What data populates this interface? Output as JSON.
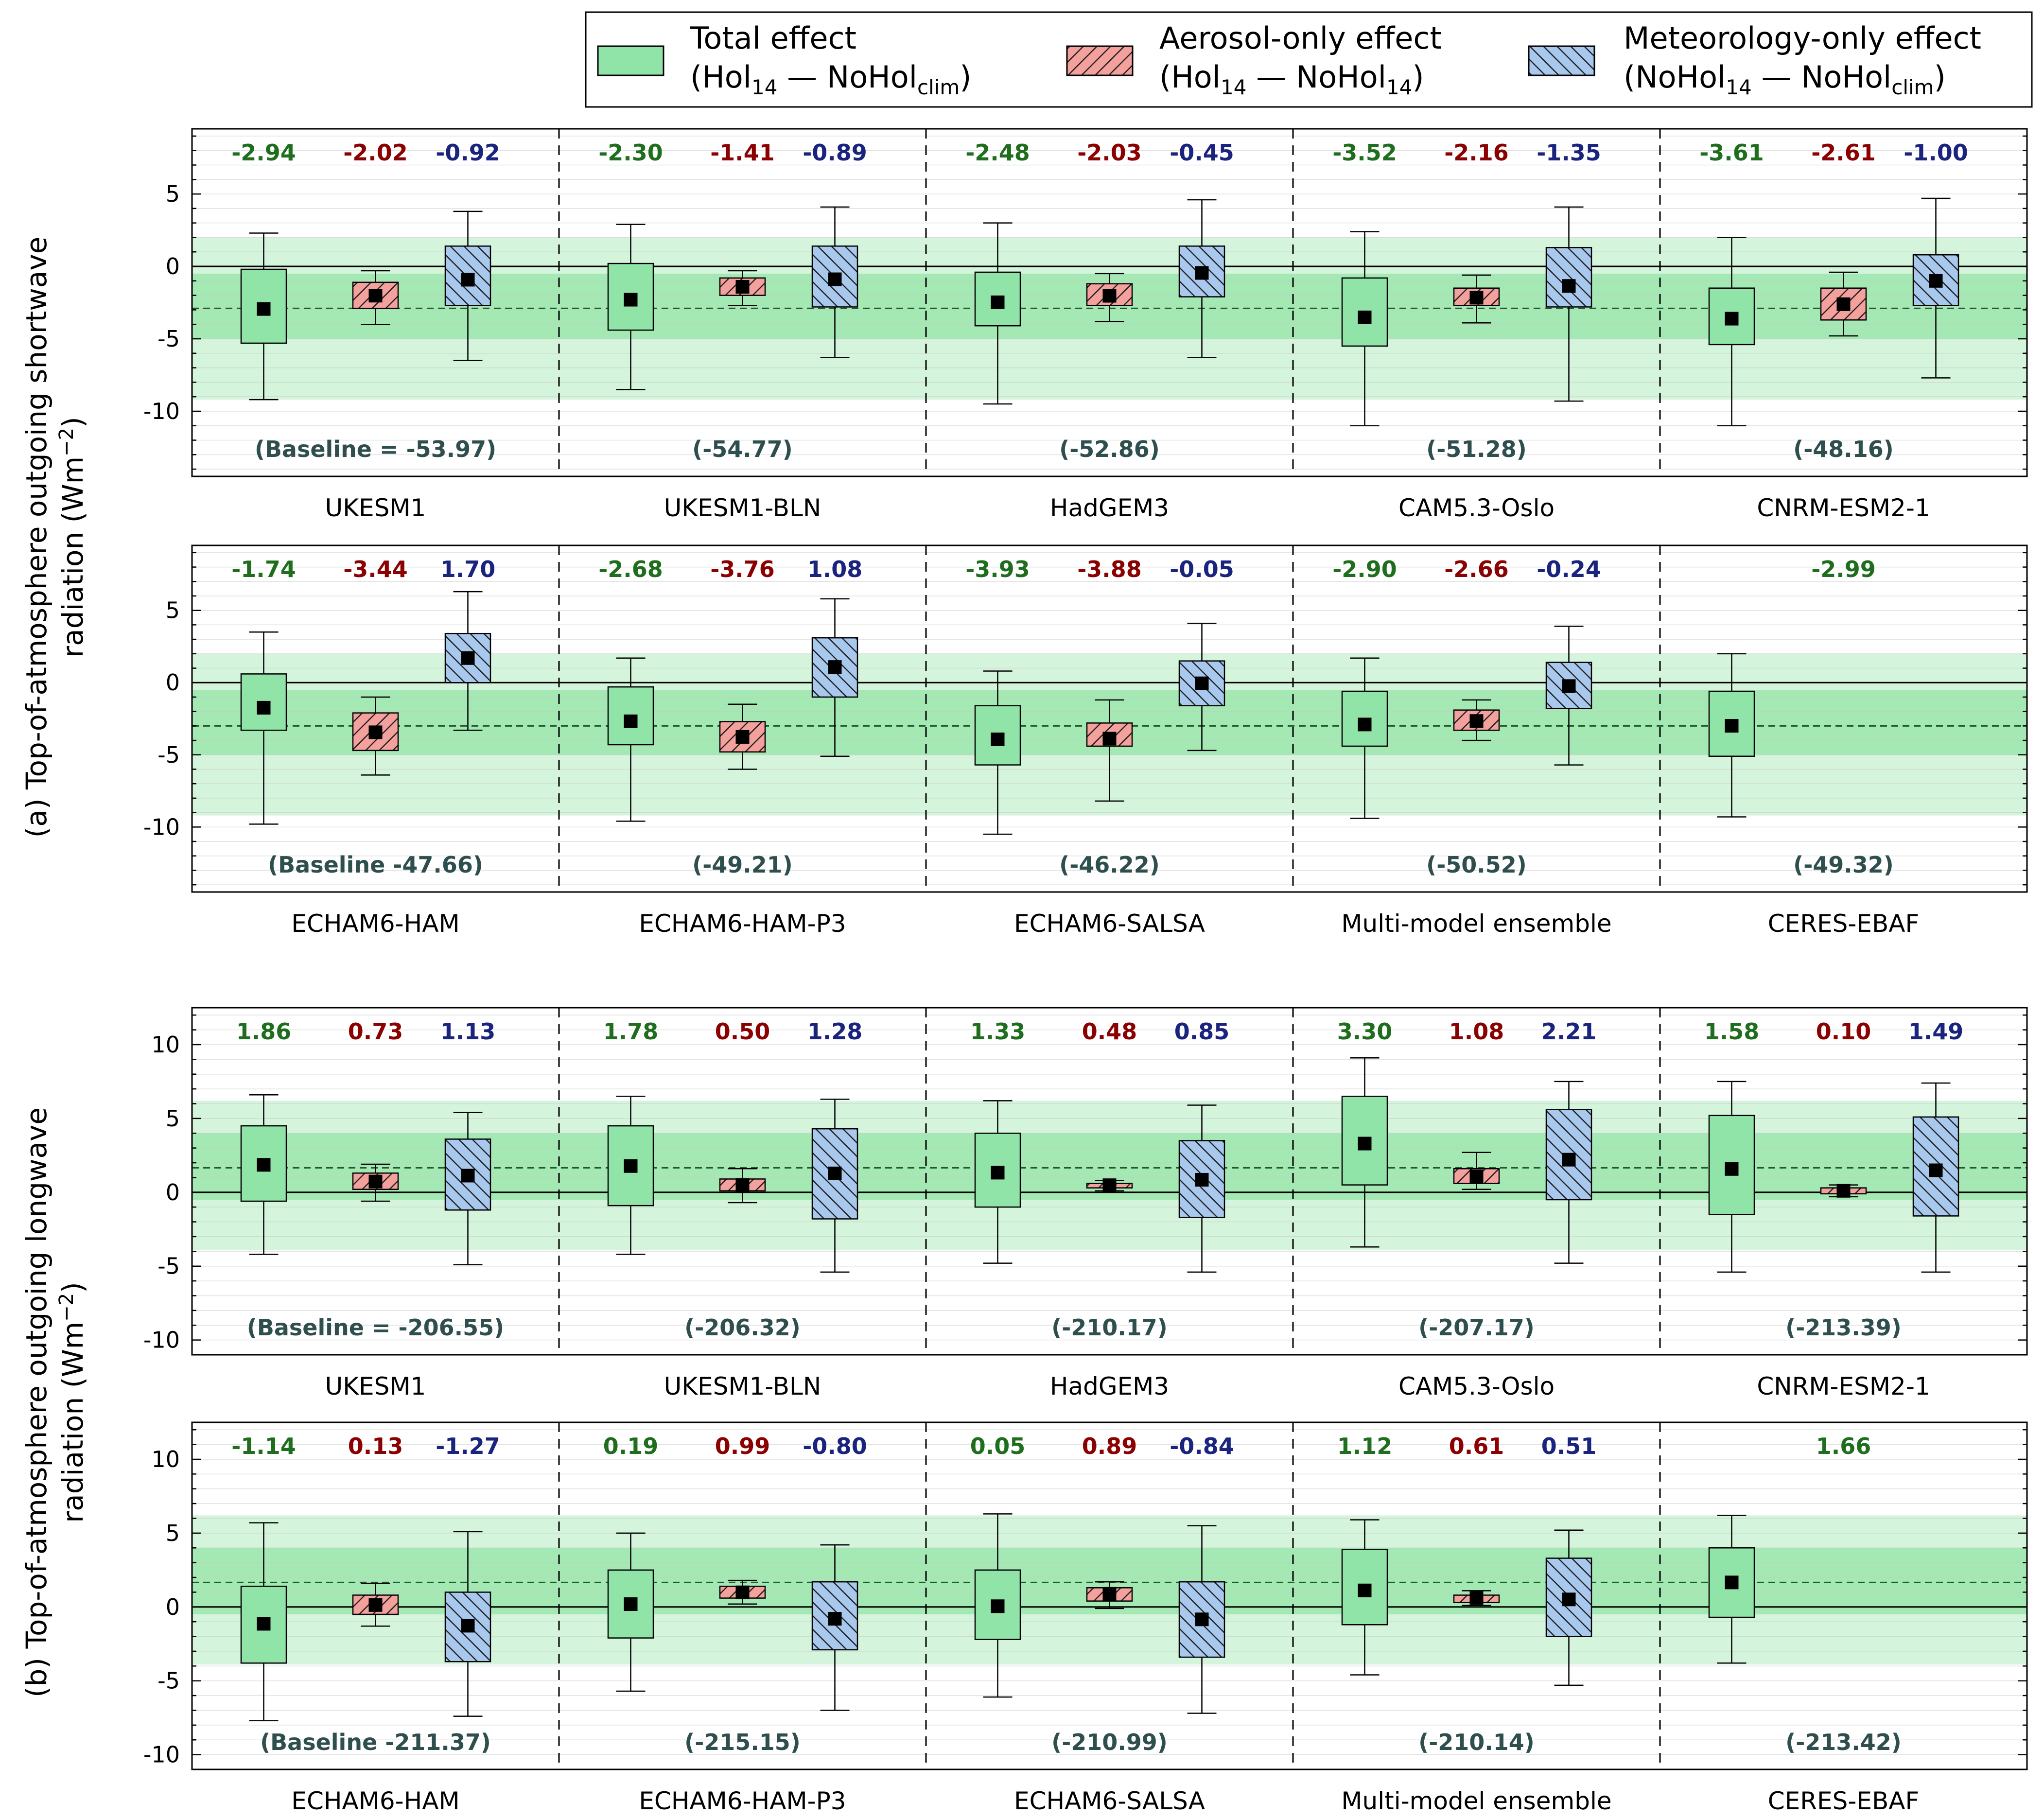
{
  "legend": {
    "total_title": "Total effect",
    "total_a": "(Hol",
    "total_a_sub": "14",
    "total_b": " — NoHol",
    "total_b_sub": "clim",
    "total_c": ")",
    "aer_title": "Aerosol-only effect",
    "aer_a": "(Hol",
    "aer_a_sub": "14",
    "aer_b": " — NoHol",
    "aer_b_sub": "14",
    "aer_c": ")",
    "met_title": "Meteorology-only effect",
    "met_a": "(NoHol",
    "met_a_sub": "14",
    "met_b": " — NoHol",
    "met_b_sub": "clim",
    "met_c": ")"
  },
  "ylabels": {
    "a_line1": "(a) Top-of-atmosphere outgoing shortwave",
    "a_line2": "radiation (Wm",
    "a_sup": "−2",
    "a_close": ")",
    "b_line1": "(b) Top-of-atmosphere outgoing longwave",
    "b_line2": "radiation (Wm",
    "b_sup": "−2",
    "b_close": ")"
  },
  "colors": {
    "total": "#90e4a8",
    "aerosol": "#f4a09c",
    "meteorology": "#a8c8ee",
    "total_text": "#1e6e1e",
    "aerosol_text": "#8b0000",
    "meteorology_text": "#1a237e",
    "baseline_text": "#2f4f4f",
    "band_outer": "#d4f4dc",
    "band_inner": "#a4e8b4"
  },
  "chart_data": [
    {
      "type": "box",
      "panel": "a-top",
      "ylim": [
        -14.5,
        9.5
      ],
      "yticks": [
        -10,
        -5,
        0,
        5
      ],
      "band_outer": [
        -9.2,
        2.0
      ],
      "band_inner": [
        -5.0,
        -0.5
      ],
      "dashed_line": -2.9,
      "models": [
        {
          "name": "UKESM1",
          "baseline": "(Baseline = -53.97)",
          "total": {
            "label": "-2.94",
            "mean": -2.94,
            "q1": -5.3,
            "q3": -0.2,
            "lo": -9.2,
            "hi": 2.3
          },
          "aerosol": {
            "label": "-2.02",
            "mean": -2.02,
            "q1": -2.9,
            "q3": -1.1,
            "lo": -4.0,
            "hi": -0.3
          },
          "meteorology": {
            "label": "-0.92",
            "mean": -0.92,
            "q1": -2.7,
            "q3": 1.4,
            "lo": -6.5,
            "hi": 3.8
          }
        },
        {
          "name": "UKESM1-BLN",
          "baseline": "(-54.77)",
          "total": {
            "label": "-2.30",
            "mean": -2.3,
            "q1": -4.4,
            "q3": 0.2,
            "lo": -8.5,
            "hi": 2.9
          },
          "aerosol": {
            "label": "-1.41",
            "mean": -1.41,
            "q1": -2.0,
            "q3": -0.8,
            "lo": -2.7,
            "hi": -0.3
          },
          "meteorology": {
            "label": "-0.89",
            "mean": -0.89,
            "q1": -2.8,
            "q3": 1.4,
            "lo": -6.3,
            "hi": 4.1
          }
        },
        {
          "name": "HadGEM3",
          "baseline": "(-52.86)",
          "total": {
            "label": "-2.48",
            "mean": -2.48,
            "q1": -4.1,
            "q3": -0.4,
            "lo": -9.5,
            "hi": 3.0
          },
          "aerosol": {
            "label": "-2.03",
            "mean": -2.03,
            "q1": -2.7,
            "q3": -1.2,
            "lo": -3.8,
            "hi": -0.5
          },
          "meteorology": {
            "label": "-0.45",
            "mean": -0.45,
            "q1": -2.1,
            "q3": 1.4,
            "lo": -6.3,
            "hi": 4.6
          }
        },
        {
          "name": "CAM5.3-Oslo",
          "baseline": "(-51.28)",
          "total": {
            "label": "-3.52",
            "mean": -3.52,
            "q1": -5.5,
            "q3": -0.8,
            "lo": -11.0,
            "hi": 2.4
          },
          "aerosol": {
            "label": "-2.16",
            "mean": -2.16,
            "q1": -2.7,
            "q3": -1.5,
            "lo": -3.9,
            "hi": -0.6
          },
          "meteorology": {
            "label": "-1.35",
            "mean": -1.35,
            "q1": -2.8,
            "q3": 1.3,
            "lo": -9.3,
            "hi": 4.1
          }
        },
        {
          "name": "CNRM-ESM2-1",
          "baseline": "(-48.16)",
          "total": {
            "label": "-3.61",
            "mean": -3.61,
            "q1": -5.4,
            "q3": -1.5,
            "lo": -11.0,
            "hi": 2.0
          },
          "aerosol": {
            "label": "-2.61",
            "mean": -2.61,
            "q1": -3.7,
            "q3": -1.5,
            "lo": -4.8,
            "hi": -0.4
          },
          "meteorology": {
            "label": "-1.00",
            "mean": -1.0,
            "q1": -2.7,
            "q3": 0.8,
            "lo": -7.7,
            "hi": 4.7
          }
        }
      ]
    },
    {
      "type": "box",
      "panel": "a-bottom",
      "ylim": [
        -14.5,
        9.5
      ],
      "yticks": [
        -10,
        -5,
        0,
        5
      ],
      "band_outer": [
        -9.2,
        2.0
      ],
      "band_inner": [
        -5.0,
        -0.5
      ],
      "dashed_line": -3.0,
      "models": [
        {
          "name": "ECHAM6-HAM",
          "baseline": "(Baseline -47.66)",
          "total": {
            "label": "-1.74",
            "mean": -1.74,
            "q1": -3.3,
            "q3": 0.6,
            "lo": -9.8,
            "hi": 3.5
          },
          "aerosol": {
            "label": "-3.44",
            "mean": -3.44,
            "q1": -4.7,
            "q3": -2.1,
            "lo": -6.4,
            "hi": -1.0
          },
          "meteorology": {
            "label": "1.70",
            "mean": 1.7,
            "q1": 0.0,
            "q3": 3.4,
            "lo": -3.3,
            "hi": 6.3
          }
        },
        {
          "name": "ECHAM6-HAM-P3",
          "baseline": "(-49.21)",
          "total": {
            "label": "-2.68",
            "mean": -2.68,
            "q1": -4.3,
            "q3": -0.3,
            "lo": -9.6,
            "hi": 1.7
          },
          "aerosol": {
            "label": "-3.76",
            "mean": -3.76,
            "q1": -4.8,
            "q3": -2.7,
            "lo": -6.0,
            "hi": -1.5
          },
          "meteorology": {
            "label": "1.08",
            "mean": 1.08,
            "q1": -1.0,
            "q3": 3.1,
            "lo": -5.1,
            "hi": 5.8
          }
        },
        {
          "name": "ECHAM6-SALSA",
          "baseline": "(-46.22)",
          "total": {
            "label": "-3.93",
            "mean": -3.93,
            "q1": -5.7,
            "q3": -1.6,
            "lo": -10.5,
            "hi": 0.8
          },
          "aerosol": {
            "label": "-3.88",
            "mean": -3.88,
            "q1": -4.4,
            "q3": -2.8,
            "lo": -8.2,
            "hi": -1.2
          },
          "meteorology": {
            "label": "-0.05",
            "mean": -0.05,
            "q1": -1.6,
            "q3": 1.5,
            "lo": -4.7,
            "hi": 4.1
          }
        },
        {
          "name": "Multi-model ensemble",
          "baseline": "(-50.52)",
          "total": {
            "label": "-2.90",
            "mean": -2.9,
            "q1": -4.4,
            "q3": -0.6,
            "lo": -9.4,
            "hi": 1.7
          },
          "aerosol": {
            "label": "-2.66",
            "mean": -2.66,
            "q1": -3.3,
            "q3": -1.9,
            "lo": -4.0,
            "hi": -1.2
          },
          "meteorology": {
            "label": "-0.24",
            "mean": -0.24,
            "q1": -1.8,
            "q3": 1.4,
            "lo": -5.7,
            "hi": 3.9
          }
        },
        {
          "name": "CERES-EBAF",
          "baseline": "(-49.32)",
          "total": {
            "label": "-2.99",
            "mean": -2.99,
            "q1": -5.1,
            "q3": -0.6,
            "lo": -9.3,
            "hi": 2.0
          },
          "aerosol": null,
          "meteorology": null
        }
      ]
    },
    {
      "type": "box",
      "panel": "b-top",
      "ylim": [
        -11,
        12.5
      ],
      "yticks": [
        -10,
        -5,
        0,
        5,
        10
      ],
      "band_outer": [
        -3.9,
        6.2
      ],
      "band_inner": [
        -0.5,
        4.0
      ],
      "dashed_line": 1.66,
      "models": [
        {
          "name": "UKESM1",
          "baseline": "(Baseline = -206.55)",
          "total": {
            "label": "1.86",
            "mean": 1.86,
            "q1": -0.6,
            "q3": 4.5,
            "lo": -4.2,
            "hi": 6.6
          },
          "aerosol": {
            "label": "0.73",
            "mean": 0.73,
            "q1": 0.2,
            "q3": 1.3,
            "lo": -0.6,
            "hi": 1.9
          },
          "meteorology": {
            "label": "1.13",
            "mean": 1.13,
            "q1": -1.2,
            "q3": 3.6,
            "lo": -4.9,
            "hi": 5.4
          }
        },
        {
          "name": "UKESM1-BLN",
          "baseline": "(-206.32)",
          "total": {
            "label": "1.78",
            "mean": 1.78,
            "q1": -0.9,
            "q3": 4.5,
            "lo": -4.2,
            "hi": 6.5
          },
          "aerosol": {
            "label": "0.50",
            "mean": 0.5,
            "q1": 0.1,
            "q3": 0.9,
            "lo": -0.7,
            "hi": 1.6
          },
          "meteorology": {
            "label": "1.28",
            "mean": 1.28,
            "q1": -1.8,
            "q3": 4.3,
            "lo": -5.4,
            "hi": 6.3
          }
        },
        {
          "name": "HadGEM3",
          "baseline": "(-210.17)",
          "total": {
            "label": "1.33",
            "mean": 1.33,
            "q1": -1.0,
            "q3": 4.0,
            "lo": -4.8,
            "hi": 6.2
          },
          "aerosol": {
            "label": "0.48",
            "mean": 0.48,
            "q1": 0.3,
            "q3": 0.6,
            "lo": 0.1,
            "hi": 0.8
          },
          "meteorology": {
            "label": "0.85",
            "mean": 0.85,
            "q1": -1.7,
            "q3": 3.5,
            "lo": -5.4,
            "hi": 5.9
          }
        },
        {
          "name": "CAM5.3-Oslo",
          "baseline": "(-207.17)",
          "total": {
            "label": "3.30",
            "mean": 3.3,
            "q1": 0.5,
            "q3": 6.5,
            "lo": -3.7,
            "hi": 9.1
          },
          "aerosol": {
            "label": "1.08",
            "mean": 1.08,
            "q1": 0.6,
            "q3": 1.6,
            "lo": 0.2,
            "hi": 2.7
          },
          "meteorology": {
            "label": "2.21",
            "mean": 2.21,
            "q1": -0.5,
            "q3": 5.6,
            "lo": -4.8,
            "hi": 7.5
          }
        },
        {
          "name": "CNRM-ESM2-1",
          "baseline": "(-213.39)",
          "total": {
            "label": "1.58",
            "mean": 1.58,
            "q1": -1.5,
            "q3": 5.2,
            "lo": -5.4,
            "hi": 7.5
          },
          "aerosol": {
            "label": "0.10",
            "mean": 0.1,
            "q1": -0.1,
            "q3": 0.3,
            "lo": -0.3,
            "hi": 0.5
          },
          "meteorology": {
            "label": "1.49",
            "mean": 1.49,
            "q1": -1.6,
            "q3": 5.1,
            "lo": -5.4,
            "hi": 7.4
          }
        }
      ]
    },
    {
      "type": "box",
      "panel": "b-bottom",
      "ylim": [
        -11,
        12.5
      ],
      "yticks": [
        -10,
        -5,
        0,
        5,
        10
      ],
      "band_outer": [
        -3.9,
        6.2
      ],
      "band_inner": [
        -0.5,
        4.0
      ],
      "dashed_line": 1.66,
      "models": [
        {
          "name": "ECHAM6-HAM",
          "baseline": "(Baseline -211.37)",
          "total": {
            "label": "-1.14",
            "mean": -1.14,
            "q1": -3.8,
            "q3": 1.4,
            "lo": -7.7,
            "hi": 5.7
          },
          "aerosol": {
            "label": "0.13",
            "mean": 0.13,
            "q1": -0.5,
            "q3": 0.8,
            "lo": -1.3,
            "hi": 1.6
          },
          "meteorology": {
            "label": "-1.27",
            "mean": -1.27,
            "q1": -3.7,
            "q3": 1.0,
            "lo": -7.4,
            "hi": 5.1
          }
        },
        {
          "name": "ECHAM6-HAM-P3",
          "baseline": "(-215.15)",
          "total": {
            "label": "0.19",
            "mean": 0.19,
            "q1": -2.1,
            "q3": 2.5,
            "lo": -5.7,
            "hi": 5.0
          },
          "aerosol": {
            "label": "0.99",
            "mean": 0.99,
            "q1": 0.6,
            "q3": 1.4,
            "lo": 0.2,
            "hi": 1.8
          },
          "meteorology": {
            "label": "-0.80",
            "mean": -0.8,
            "q1": -2.9,
            "q3": 1.7,
            "lo": -7.0,
            "hi": 4.2
          }
        },
        {
          "name": "ECHAM6-SALSA",
          "baseline": "(-210.99)",
          "total": {
            "label": "0.05",
            "mean": 0.05,
            "q1": -2.2,
            "q3": 2.5,
            "lo": -6.1,
            "hi": 6.3
          },
          "aerosol": {
            "label": "0.89",
            "mean": 0.89,
            "q1": 0.4,
            "q3": 1.3,
            "lo": -0.1,
            "hi": 1.7
          },
          "meteorology": {
            "label": "-0.84",
            "mean": -0.84,
            "q1": -3.4,
            "q3": 1.7,
            "lo": -7.2,
            "hi": 5.5
          }
        },
        {
          "name": "Multi-model ensemble",
          "baseline": "(-210.14)",
          "total": {
            "label": "1.12",
            "mean": 1.12,
            "q1": -1.2,
            "q3": 3.9,
            "lo": -4.6,
            "hi": 5.9
          },
          "aerosol": {
            "label": "0.61",
            "mean": 0.61,
            "q1": 0.3,
            "q3": 0.8,
            "lo": 0.1,
            "hi": 1.1
          },
          "meteorology": {
            "label": "0.51",
            "mean": 0.51,
            "q1": -2.0,
            "q3": 3.3,
            "lo": -5.3,
            "hi": 5.2
          }
        },
        {
          "name": "CERES-EBAF",
          "baseline": "(-213.42)",
          "total": {
            "label": "1.66",
            "mean": 1.66,
            "q1": -0.7,
            "q3": 4.0,
            "lo": -3.8,
            "hi": 6.2
          },
          "aerosol": null,
          "meteorology": null
        }
      ]
    }
  ]
}
